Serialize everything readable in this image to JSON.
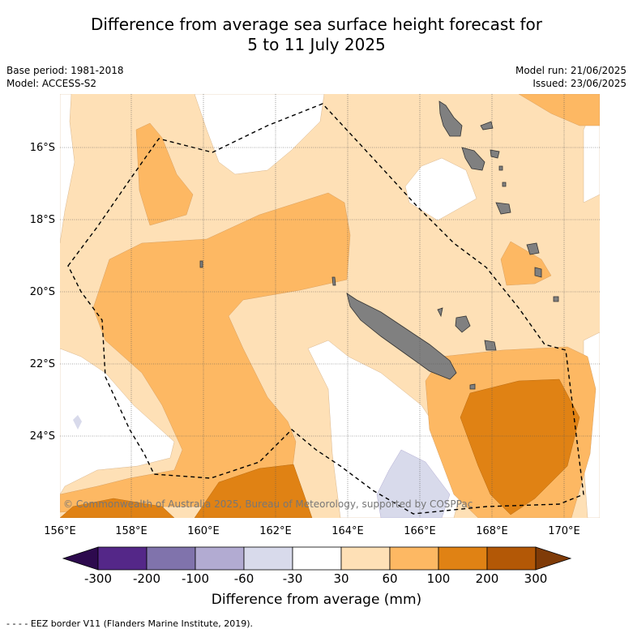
{
  "title_line1": "Difference from average sea surface height forecast for",
  "title_line2": "5 to 11 July 2025",
  "base_period": "Base period: 1981-2018",
  "model": "Model: ACCESS-S2",
  "model_run": "Model run: 21/06/2025",
  "issued": "Issued: 23/06/2025",
  "lon_ticks": [
    "156°E",
    "158°E",
    "160°E",
    "162°E",
    "164°E",
    "166°E",
    "168°E",
    "170°E"
  ],
  "lat_ticks": [
    "16°S",
    "18°S",
    "20°S",
    "22°S",
    "24°S"
  ],
  "copyright": "© Commonwealth of Australia 2025, Bureau of Meteorology, supported by COSPPac",
  "colorbar": {
    "title": "Difference from average (mm)",
    "labels": [
      "-300",
      "-200",
      "-100",
      "-60",
      "-30",
      "30",
      "60",
      "100",
      "200",
      "300"
    ],
    "colors": {
      "below_-300": "#2d0a4e",
      "-300_-200": "#542788",
      "-200_-100": "#8073ac",
      "-100_-60": "#b2abd2",
      "-60_-30": "#d8daeb",
      "-30_30": "#ffffff",
      "30_60": "#fee0b6",
      "60_100": "#fdb863",
      "100_200": "#e08214",
      "200_300": "#b35806",
      "above_300": "#7f3b08"
    }
  },
  "legend_note": "- -  - -  EEZ border V11 (Flanders Marine Institute, 2019)."
}
